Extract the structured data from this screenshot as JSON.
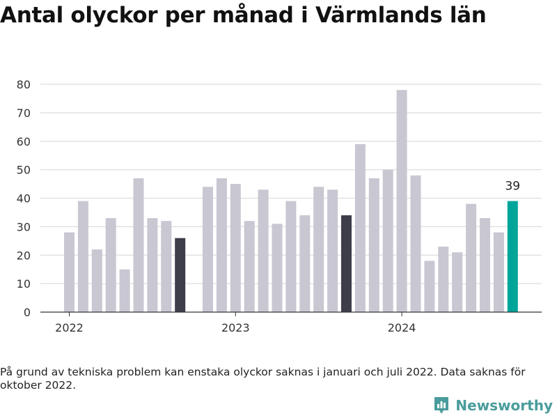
{
  "title": "Antal olyckor per månad i Värmlands län",
  "note": "På grund av tekniska problem kan enstaka olyckor saknas i januari och juli 2022. Data saknas för oktober 2022.",
  "brand": {
    "name": "Newsworthy",
    "icon": "newsworthy-logo-icon"
  },
  "colors": {
    "default": "#c8c7d2",
    "highlight": "#3e3d4a",
    "latest": "#00a59a",
    "grid": "#dddddd",
    "axis": "#333333"
  },
  "chart_data": {
    "type": "bar",
    "title": "Antal olyckor per månad i Värmlands län",
    "xlabel": "",
    "ylabel": "",
    "ylim": [
      0,
      80
    ],
    "yticks": [
      0,
      10,
      20,
      30,
      40,
      50,
      60,
      70,
      80
    ],
    "grid": true,
    "xtick_labels": [
      {
        "label": "2022",
        "month": "2022-01"
      },
      {
        "label": "2023",
        "month": "2023-01"
      },
      {
        "label": "2024",
        "month": "2024-01"
      }
    ],
    "months": [
      "2022-01",
      "2022-02",
      "2022-03",
      "2022-04",
      "2022-05",
      "2022-06",
      "2022-07",
      "2022-08",
      "2022-09",
      "2022-10",
      "2022-11",
      "2022-12",
      "2023-01",
      "2023-02",
      "2023-03",
      "2023-04",
      "2023-05",
      "2023-06",
      "2023-07",
      "2023-08",
      "2023-09",
      "2023-10",
      "2023-11",
      "2023-12",
      "2024-01",
      "2024-02",
      "2024-03",
      "2024-04",
      "2024-05",
      "2024-06",
      "2024-07",
      "2024-08",
      "2024-09"
    ],
    "values": [
      28,
      39,
      22,
      33,
      15,
      47,
      33,
      32,
      26,
      null,
      44,
      47,
      45,
      32,
      43,
      31,
      39,
      34,
      44,
      43,
      34,
      59,
      47,
      50,
      78,
      48,
      18,
      23,
      21,
      38,
      33,
      28,
      39
    ],
    "highlighted": [
      "2022-09",
      "2023-09"
    ],
    "latest": "2024-09",
    "value_labels": [
      {
        "month": "2024-09",
        "text": "39"
      }
    ]
  }
}
